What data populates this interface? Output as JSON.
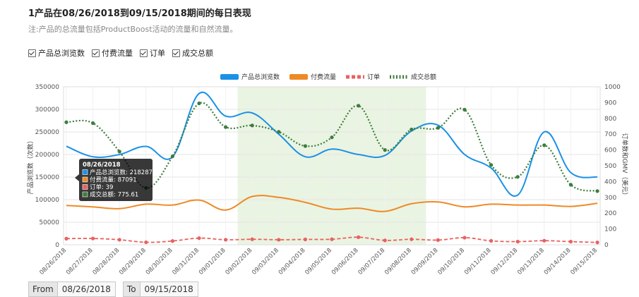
{
  "header": {
    "title": "1产品在08/26/2018到09/15/2018期间的每日表现",
    "subtitle": "注:产品的总流量包括ProductBoost活动的流量和自然流量。"
  },
  "filters": [
    {
      "label": "产品总浏览数",
      "checked": true
    },
    {
      "label": "付费流量",
      "checked": true
    },
    {
      "label": "订单",
      "checked": true
    },
    {
      "label": "成交总额",
      "checked": true
    }
  ],
  "date_range": {
    "from_label": "From",
    "from_value": "08/26/2018",
    "to_label": "To",
    "to_value": "09/15/2018"
  },
  "tooltip": {
    "date": "08/26/2018",
    "lines": [
      "产品总浏览数: 218287",
      "付费流量: 87091",
      "订单: 39",
      "成交总额: 775.61"
    ]
  },
  "chart_data": {
    "type": "line",
    "categories": [
      "08/26/2018",
      "08/27/2018",
      "08/28/2018",
      "08/29/2018",
      "08/30/2018",
      "08/31/2018",
      "09/01/2018",
      "09/02/2018",
      "09/03/2018",
      "09/04/2018",
      "09/05/2018",
      "09/06/2018",
      "09/07/2018",
      "09/08/2018",
      "09/09/2018",
      "09/10/2018",
      "09/11/2018",
      "09/12/2018",
      "09/13/2018",
      "09/14/2018",
      "09/15/2018"
    ],
    "ylabel": "产品浏览数（次数）",
    "y2label": "订单数和GMV（美元）",
    "ylim": [
      0,
      350000
    ],
    "y2lim": [
      0,
      1000
    ],
    "yticks": [
      "0",
      "50000",
      "100000",
      "150000",
      "200000",
      "250000",
      "300000",
      "350000"
    ],
    "y2ticks": [
      "0",
      "100",
      "200",
      "300",
      "400",
      "500",
      "600",
      "700",
      "800",
      "900",
      "1000"
    ],
    "highlight_range": [
      "09/02/2018",
      "09/08/2018"
    ],
    "legend_position": "top",
    "series": [
      {
        "name": "产品总浏览数",
        "axis": "left",
        "color": "#1a91e6",
        "style": "solid",
        "values": [
          218287,
          195000,
          200000,
          218000,
          195000,
          335000,
          285000,
          292000,
          245000,
          195000,
          212000,
          200000,
          198000,
          252000,
          265000,
          200000,
          170000,
          110000,
          250000,
          160000,
          150000
        ]
      },
      {
        "name": "付费流量",
        "axis": "left",
        "color": "#ee8a26",
        "style": "solid",
        "values": [
          87091,
          84000,
          80000,
          90000,
          88000,
          99000,
          77000,
          107000,
          105000,
          94000,
          79000,
          81000,
          74000,
          91000,
          95000,
          84000,
          90000,
          88000,
          88000,
          85000,
          92000
        ]
      },
      {
        "name": "订单",
        "axis": "right",
        "color": "#e96060",
        "style": "dashed",
        "values": [
          39,
          40,
          32,
          16,
          24,
          42,
          32,
          35,
          32,
          34,
          35,
          48,
          28,
          35,
          30,
          45,
          25,
          20,
          26,
          20,
          15
        ]
      },
      {
        "name": "成交总额",
        "axis": "right",
        "color": "#3d7d3d",
        "style": "dotted",
        "values": [
          775.61,
          770,
          590,
          360,
          560,
          895,
          745,
          755,
          715,
          625,
          680,
          880,
          600,
          730,
          740,
          855,
          505,
          430,
          630,
          380,
          340
        ]
      }
    ]
  }
}
